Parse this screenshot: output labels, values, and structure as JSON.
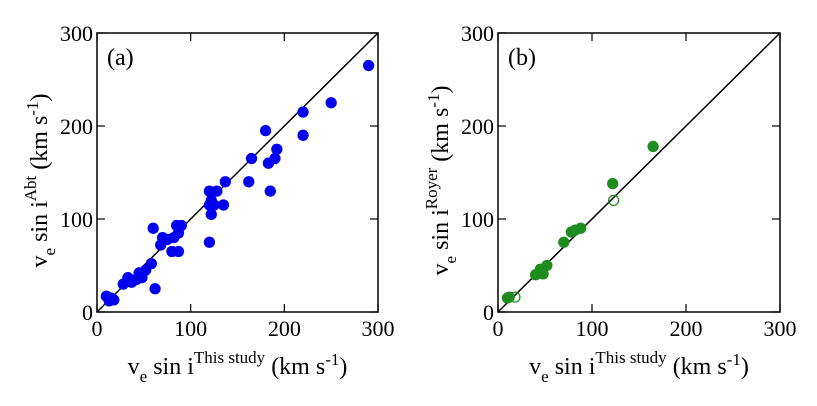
{
  "chart_data": [
    {
      "type": "scatter",
      "panel_label": "(a)",
      "xlabel": {
        "base": "v",
        "sub": "e",
        "mid": " sin i",
        "sup": "This study",
        "unit": " (km s",
        "unit_sup": "-1",
        "end": ")"
      },
      "ylabel": {
        "base": "v",
        "sub": "e",
        "mid": " sin i",
        "sup": "Abt",
        "unit": " (km s",
        "unit_sup": "-1",
        "end": ")"
      },
      "xlim": [
        0,
        300
      ],
      "ylim": [
        0,
        300
      ],
      "xticks": [
        0,
        100,
        200,
        300
      ],
      "yticks": [
        0,
        100,
        200,
        300
      ],
      "diagonal": true,
      "series": [
        {
          "color": "#0000ee",
          "filled": true,
          "x": [
            10,
            13,
            15,
            18,
            28,
            33,
            37,
            42,
            45,
            48,
            52,
            58,
            60,
            62,
            68,
            70,
            75,
            80,
            82,
            85,
            87,
            87,
            90,
            120,
            120,
            120,
            122,
            122,
            125,
            128,
            135,
            137,
            162,
            165,
            180,
            183,
            185,
            190,
            192,
            220,
            220,
            250,
            290
          ],
          "values": [
            17,
            12,
            15,
            13,
            30,
            37,
            32,
            35,
            42,
            37,
            45,
            52,
            90,
            25,
            72,
            80,
            78,
            65,
            80,
            93,
            65,
            85,
            93,
            75,
            115,
            130,
            105,
            120,
            115,
            130,
            115,
            140,
            140,
            165,
            195,
            160,
            130,
            165,
            175,
            190,
            215,
            225,
            265
          ]
        }
      ]
    },
    {
      "type": "scatter",
      "panel_label": "(b)",
      "xlabel": {
        "base": "v",
        "sub": "e",
        "mid": " sin i",
        "sup": "This study",
        "unit": " (km s",
        "unit_sup": "-1",
        "end": ")"
      },
      "ylabel": {
        "base": "v",
        "sub": "e",
        "mid": " sin i",
        "sup": "Royer",
        "unit": " (km s",
        "unit_sup": "-1",
        "end": ")"
      },
      "xlim": [
        0,
        300
      ],
      "ylim": [
        0,
        300
      ],
      "xticks": [
        0,
        100,
        200,
        300
      ],
      "yticks": [
        0,
        100,
        200,
        300
      ],
      "diagonal": true,
      "series": [
        {
          "color": "#1e8c1e",
          "filled": true,
          "x": [
            10,
            12,
            40,
            45,
            48,
            52,
            70,
            78,
            82,
            88,
            122,
            165
          ],
          "values": [
            15,
            16,
            40,
            46,
            41,
            50,
            75,
            86,
            88,
            90,
            138,
            178
          ]
        },
        {
          "color": "#1e8c1e",
          "filled": false,
          "x": [
            18,
            123
          ],
          "values": [
            16,
            120
          ]
        }
      ]
    }
  ]
}
